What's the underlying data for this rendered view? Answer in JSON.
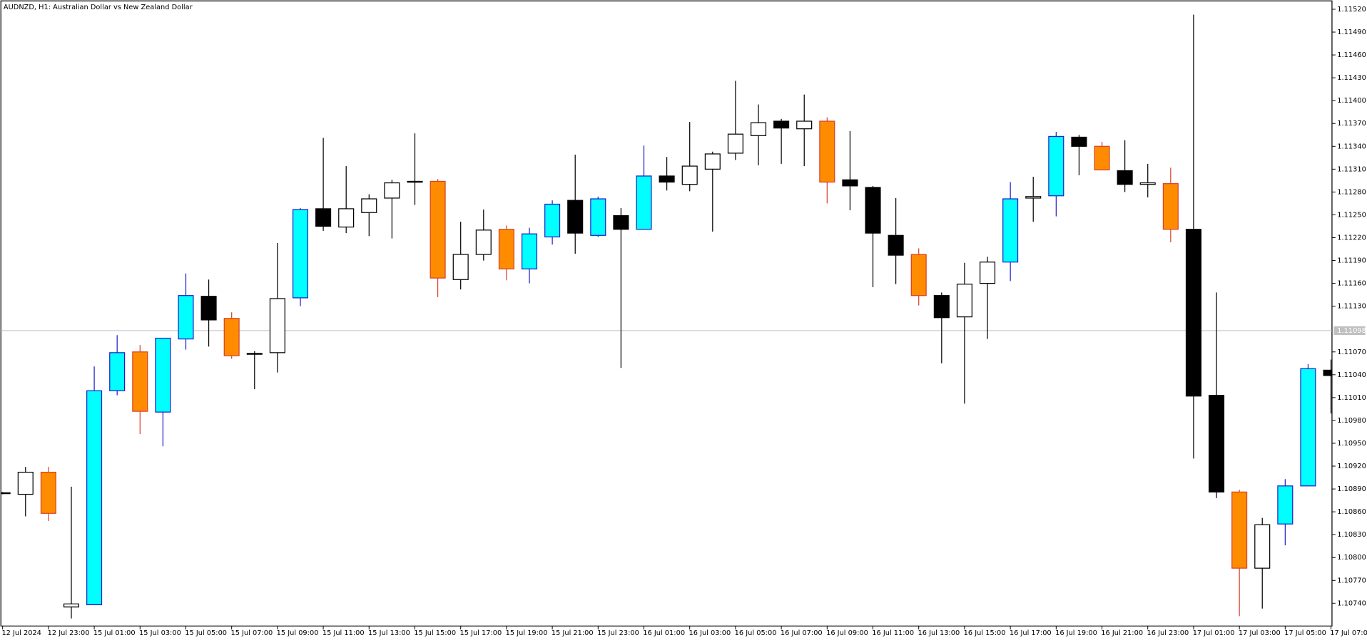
{
  "chart_data": {
    "type": "candlestick",
    "title": "AUDNZD, H1:  Australian Dollar vs New Zealand Dollar",
    "categories": [
      "12 Jul 2024",
      null,
      "12 Jul 23:00",
      null,
      "15 Jul 01:00",
      null,
      "15 Jul 03:00",
      null,
      "15 Jul 05:00",
      null,
      "15 Jul 07:00",
      null,
      "15 Jul 09:00",
      null,
      "15 Jul 11:00",
      null,
      "15 Jul 13:00",
      null,
      "15 Jul 15:00",
      null,
      "15 Jul 17:00",
      null,
      "15 Jul 19:00",
      null,
      "15 Jul 21:00",
      null,
      "15 Jul 23:00",
      null,
      "16 Jul 01:00",
      null,
      "16 Jul 03:00",
      null,
      "16 Jul 05:00",
      null,
      "16 Jul 07:00",
      null,
      "16 Jul 09:00",
      null,
      "16 Jul 11:00",
      null,
      "16 Jul 13:00",
      null,
      "16 Jul 15:00",
      null,
      "16 Jul 17:00",
      null,
      "16 Jul 19:00",
      null,
      "16 Jul 21:00",
      null,
      "16 Jul 23:00",
      null,
      "17 Jul 01:00",
      null,
      "17 Jul 03:00",
      null,
      "17 Jul 05:00",
      null,
      "17 Jul 07:00"
    ],
    "open": [
      1.10885,
      1.10883,
      1.10912,
      1.10735,
      1.10738,
      1.11019,
      1.1107,
      1.10991,
      1.11087,
      1.11143,
      1.11114,
      1.11068,
      1.11069,
      1.11141,
      1.11258,
      1.11234,
      1.11253,
      1.11272,
      1.11294,
      1.11294,
      1.11165,
      1.11198,
      1.11231,
      1.11179,
      1.11221,
      1.11269,
      1.11223,
      1.11249,
      1.11231,
      1.11301,
      1.1129,
      1.1131,
      1.11331,
      1.11354,
      1.11373,
      1.11363,
      1.11373,
      1.11296,
      1.11286,
      1.11223,
      1.11198,
      1.11144,
      1.11116,
      1.1116,
      1.11188,
      1.11272,
      1.11275,
      1.11352,
      1.1134,
      1.11308,
      1.1129,
      1.11291,
      1.11231,
      1.11013,
      1.10886,
      1.10786,
      1.10844,
      1.10894,
      1.11046
    ],
    "high": [
      1.10886,
      1.10919,
      1.10919,
      1.10893,
      1.11051,
      1.11092,
      1.11079,
      1.11088,
      1.11173,
      1.11165,
      1.11122,
      1.11071,
      1.11213,
      1.11259,
      1.11351,
      1.11314,
      1.11277,
      1.11296,
      1.11357,
      1.11297,
      1.11241,
      1.11257,
      1.11236,
      1.11233,
      1.11269,
      1.11329,
      1.11274,
      1.11259,
      1.11341,
      1.11326,
      1.11372,
      1.11333,
      1.11426,
      1.11395,
      1.11376,
      1.11408,
      1.11378,
      1.1136,
      1.11288,
      1.11272,
      1.11206,
      1.11148,
      1.11187,
      1.11195,
      1.11293,
      1.113,
      1.11359,
      1.11355,
      1.11346,
      1.11348,
      1.11317,
      1.11312,
      1.11513,
      1.11148,
      1.10889,
      1.10852,
      1.10903,
      1.11054,
      1.1106
    ],
    "low": [
      1.10883,
      1.10854,
      1.10848,
      1.1072,
      1.10738,
      1.11013,
      1.10962,
      1.10946,
      1.11073,
      1.11077,
      1.11061,
      1.11021,
      1.11043,
      1.1113,
      1.11229,
      1.11226,
      1.11222,
      1.11219,
      1.11263,
      1.11142,
      1.11152,
      1.1119,
      1.11164,
      1.1116,
      1.11211,
      1.11199,
      1.11221,
      1.11049,
      1.11231,
      1.11282,
      1.11281,
      1.11228,
      1.11322,
      1.11315,
      1.11317,
      1.11314,
      1.11265,
      1.11256,
      1.11155,
      1.11159,
      1.11131,
      1.11055,
      1.11002,
      1.11087,
      1.11163,
      1.11241,
      1.11248,
      1.11302,
      1.11309,
      1.1128,
      1.11273,
      1.11214,
      1.1093,
      1.10878,
      1.10723,
      1.10733,
      1.10816,
      1.10894,
      1.10989
    ],
    "close": [
      1.10884,
      1.10912,
      1.10858,
      1.10739,
      1.11019,
      1.11069,
      1.10992,
      1.11088,
      1.11144,
      1.11112,
      1.11065,
      1.11067,
      1.1114,
      1.11257,
      1.11235,
      1.11258,
      1.11271,
      1.11292,
      1.11293,
      1.11167,
      1.11198,
      1.1123,
      1.11179,
      1.11225,
      1.11264,
      1.11226,
      1.11271,
      1.11231,
      1.11301,
      1.11293,
      1.11314,
      1.1133,
      1.11356,
      1.11371,
      1.11364,
      1.11373,
      1.11293,
      1.11288,
      1.11226,
      1.11197,
      1.11144,
      1.11115,
      1.11159,
      1.11188,
      1.11271,
      1.11274,
      1.11353,
      1.1134,
      1.11309,
      1.1129,
      1.11292,
      1.11231,
      1.11012,
      1.10886,
      1.10786,
      1.10843,
      1.10894,
      1.11048,
      1.11039
    ],
    "colors": [
      "#000000",
      "#ffffff",
      "#ff8c00",
      "#ffffff",
      "#00ffff",
      "#00ffff",
      "#ff8c00",
      "#00ffff",
      "#00ffff",
      "#000000",
      "#ff8c00",
      "#000000",
      "#ffffff",
      "#00ffff",
      "#000000",
      "#ffffff",
      "#ffffff",
      "#ffffff",
      "#000000",
      "#ff8c00",
      "#ffffff",
      "#ffffff",
      "#ff8c00",
      "#00ffff",
      "#00ffff",
      "#000000",
      "#00ffff",
      "#000000",
      "#00ffff",
      "#000000",
      "#ffffff",
      "#ffffff",
      "#ffffff",
      "#ffffff",
      "#000000",
      "#ffffff",
      "#ff8c00",
      "#000000",
      "#000000",
      "#000000",
      "#ff8c00",
      "#000000",
      "#ffffff",
      "#ffffff",
      "#00ffff",
      "#ffffff",
      "#00ffff",
      "#000000",
      "#ff8c00",
      "#000000",
      "#ffffff",
      "#ff8c00",
      "#000000",
      "#000000",
      "#ff8c00",
      "#ffffff",
      "#00ffff",
      "#00ffff",
      "#000000"
    ],
    "edge_colors": [
      "#000000",
      "#000000",
      "#d8402a",
      "#000000",
      "#1e1ec8",
      "#1e1ec8",
      "#d8402a",
      "#1e1ec8",
      "#1e1ec8",
      "#000000",
      "#d8402a",
      "#000000",
      "#000000",
      "#1e1ec8",
      "#000000",
      "#000000",
      "#000000",
      "#000000",
      "#000000",
      "#d8402a",
      "#000000",
      "#000000",
      "#d8402a",
      "#1e1ec8",
      "#1e1ec8",
      "#000000",
      "#1e1ec8",
      "#000000",
      "#1e1ec8",
      "#000000",
      "#000000",
      "#000000",
      "#000000",
      "#000000",
      "#000000",
      "#000000",
      "#d8402a",
      "#000000",
      "#000000",
      "#000000",
      "#d8402a",
      "#000000",
      "#000000",
      "#000000",
      "#1e1ec8",
      "#000000",
      "#1e1ec8",
      "#000000",
      "#d8402a",
      "#000000",
      "#000000",
      "#d8402a",
      "#000000",
      "#000000",
      "#d8402a",
      "#000000",
      "#1e1ec8",
      "#1e1ec8",
      "#000000"
    ],
    "ylim": [
      1.1071,
      1.11531
    ],
    "yticks": [
      {
        "value": 1.1074,
        "label": "1.10740"
      },
      {
        "value": 1.1077,
        "label": "1.10770"
      },
      {
        "value": 1.108,
        "label": "1.10800"
      },
      {
        "value": 1.1083,
        "label": "1.10830"
      },
      {
        "value": 1.1086,
        "label": "1.10860"
      },
      {
        "value": 1.1089,
        "label": "1.10890"
      },
      {
        "value": 1.1092,
        "label": "1.10920"
      },
      {
        "value": 1.1095,
        "label": "1.10950"
      },
      {
        "value": 1.1098,
        "label": "1.10980"
      },
      {
        "value": 1.1101,
        "label": "1.11010"
      },
      {
        "value": 1.1104,
        "label": "1.11040"
      },
      {
        "value": 1.1107,
        "label": "1.11070"
      },
      {
        "value": 1.1113,
        "label": "1.11130"
      },
      {
        "value": 1.1116,
        "label": "1.11160"
      },
      {
        "value": 1.1119,
        "label": "1.11190"
      },
      {
        "value": 1.1122,
        "label": "1.11220"
      },
      {
        "value": 1.1125,
        "label": "1.11250"
      },
      {
        "value": 1.1128,
        "label": "1.11280"
      },
      {
        "value": 1.1131,
        "label": "1.11310"
      },
      {
        "value": 1.1134,
        "label": "1.11340"
      },
      {
        "value": 1.1137,
        "label": "1.11370"
      },
      {
        "value": 1.114,
        "label": "1.11400"
      },
      {
        "value": 1.1143,
        "label": "1.11430"
      },
      {
        "value": 1.1146,
        "label": "1.11460"
      },
      {
        "value": 1.1149,
        "label": "1.11490"
      },
      {
        "value": 1.1152,
        "label": "1.11520"
      }
    ],
    "price_line": 1.11098,
    "grid": false
  }
}
